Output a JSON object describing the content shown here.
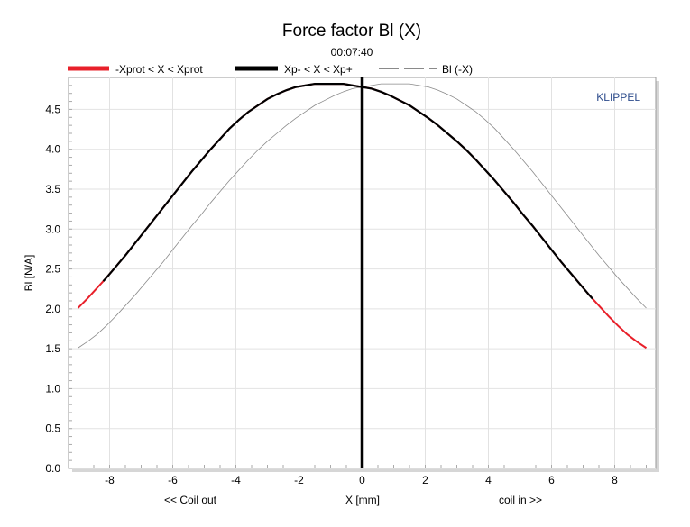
{
  "chart_data": {
    "type": "line",
    "title": "Force factor Bl (X)",
    "subtitle": "00:07:40",
    "xlabel": "X [mm]",
    "ylabel": "Bl [N/A]",
    "xlabel_left": "<< Coil out",
    "xlabel_right": "coil in >>",
    "watermark": "KLIPPEL",
    "xlim": [
      -9.3,
      9.3
    ],
    "ylim": [
      0,
      4.9
    ],
    "xticks": [
      -8,
      -6,
      -4,
      -2,
      0,
      2,
      4,
      6,
      8
    ],
    "yticks": [
      0.0,
      0.5,
      1.0,
      1.5,
      2.0,
      2.5,
      3.0,
      3.5,
      4.0,
      4.5
    ],
    "ytick_labels": [
      "0.0",
      "0.5",
      "1.0",
      "1.5",
      "2.0",
      "2.5",
      "3.0",
      "3.5",
      "4.0",
      "4.5"
    ],
    "grid": true,
    "legend_position": "top",
    "series": [
      {
        "name": "-Xprot < X < Xprot",
        "color": "#e8202a",
        "x": [
          -9.0,
          -8.7,
          -8.4,
          -8.1,
          -7.8,
          -7.5,
          -7.2,
          -6.9,
          -6.6,
          -6.3,
          -6.0,
          -5.7,
          -5.4,
          -5.1,
          -4.8,
          -4.5,
          -4.2,
          -3.9,
          -3.6,
          -3.3,
          -3.0,
          -2.7,
          -2.4,
          -2.1,
          -1.8,
          -1.5,
          -1.2,
          -0.9,
          -0.6,
          -0.3,
          0.0,
          0.3,
          0.6,
          0.9,
          1.2,
          1.5,
          1.8,
          2.1,
          2.4,
          2.7,
          3.0,
          3.3,
          3.6,
          3.9,
          4.2,
          4.5,
          4.8,
          5.1,
          5.4,
          5.7,
          6.0,
          6.3,
          6.6,
          6.9,
          7.2,
          7.5,
          7.8,
          8.1,
          8.4,
          8.7,
          9.0
        ],
        "y": [
          2.01,
          2.13,
          2.26,
          2.39,
          2.53,
          2.67,
          2.82,
          2.97,
          3.12,
          3.27,
          3.42,
          3.57,
          3.72,
          3.86,
          4.0,
          4.13,
          4.26,
          4.37,
          4.47,
          4.55,
          4.63,
          4.69,
          4.74,
          4.78,
          4.8,
          4.82,
          4.82,
          4.82,
          4.82,
          4.8,
          4.78,
          4.76,
          4.72,
          4.67,
          4.61,
          4.55,
          4.47,
          4.39,
          4.3,
          4.2,
          4.1,
          3.99,
          3.87,
          3.74,
          3.61,
          3.47,
          3.33,
          3.18,
          3.04,
          2.89,
          2.74,
          2.59,
          2.45,
          2.31,
          2.17,
          2.04,
          1.91,
          1.79,
          1.68,
          1.59,
          1.51
        ]
      },
      {
        "name": "Xp- < X < Xp+",
        "color": "#000000",
        "xmin": -8.2,
        "xmax": 7.3
      },
      {
        "name": "Bl (-X)",
        "color": "#8a8a8a",
        "mirror_of": 0
      }
    ],
    "vertical_marker_x": 0
  }
}
